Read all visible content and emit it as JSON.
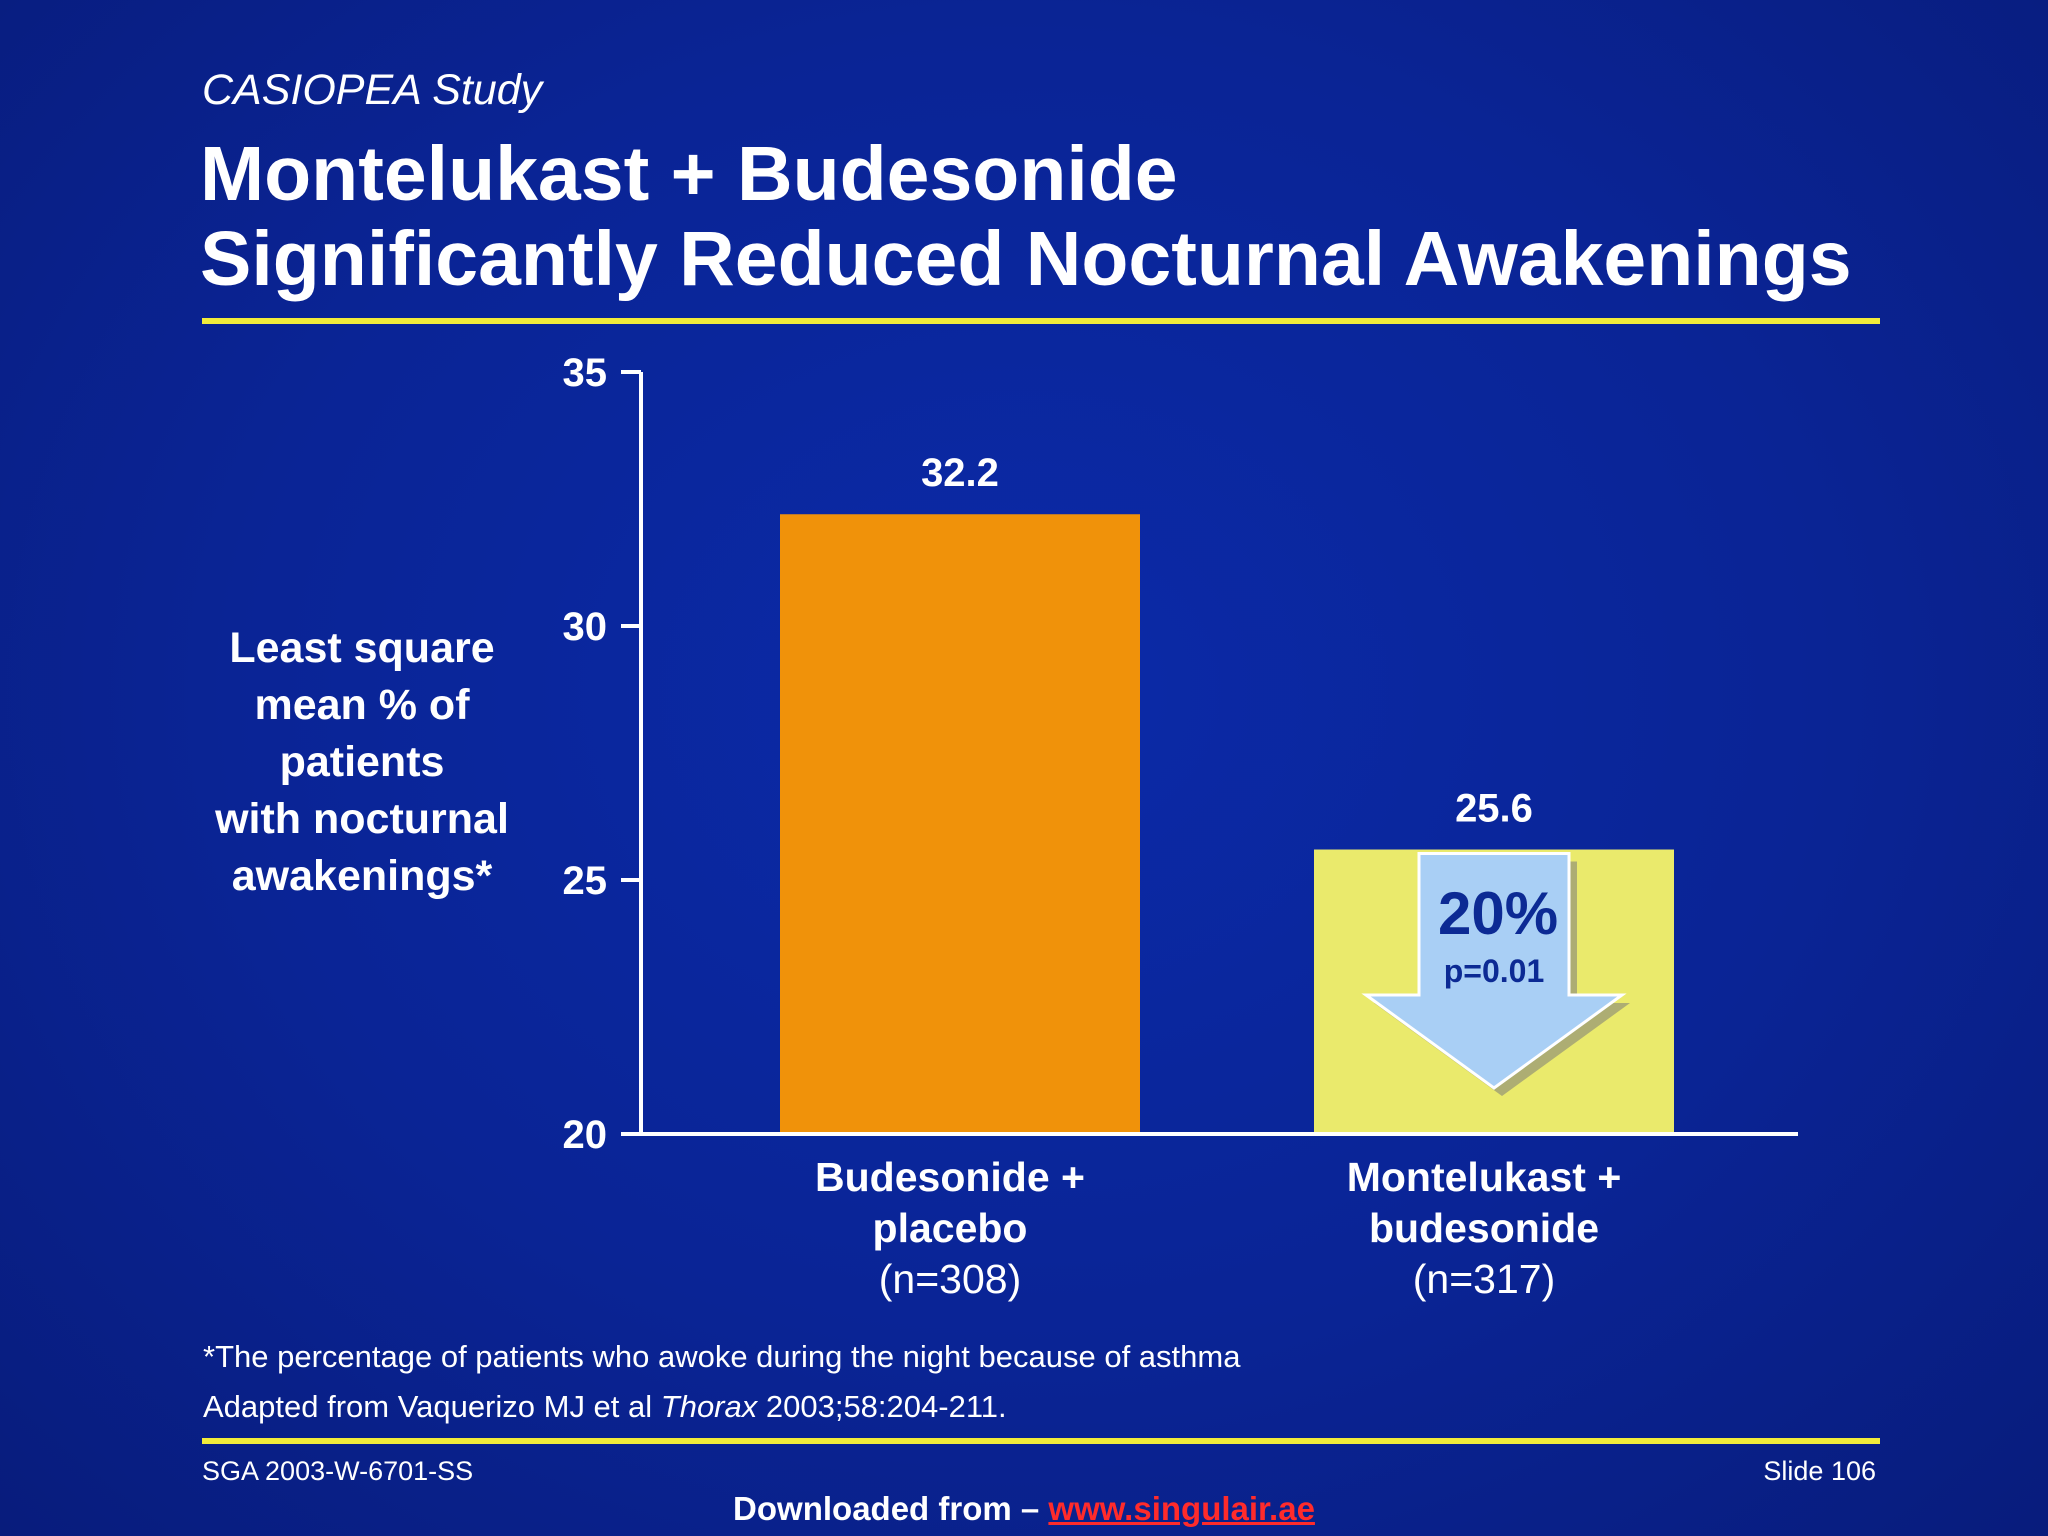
{
  "slide": {
    "study_label": "CASIOPEA Study",
    "title_line1": "Montelukast + Budesonide",
    "title_line2": "Significantly Reduced Nocturnal Awakenings",
    "footnote_line1": "*The percentage of patients who awoke during the night because of asthma",
    "footnote_line2_pre": "Adapted from Vaquerizo MJ et al ",
    "footnote_line2_journal": "Thorax",
    "footnote_line2_post": " 2003;58:204-211.",
    "footer_code": "SGA 2003-W-6701-SS",
    "slide_number": "Slide 106",
    "downloaded_prefix": "Downloaded from – ",
    "downloaded_link": "www.singulair.ae"
  },
  "chart_data": {
    "type": "bar",
    "ylabel_lines": [
      "Least square",
      "mean % of",
      "patients",
      "with nocturnal",
      "awakenings*"
    ],
    "ylim": [
      20,
      35
    ],
    "yticks": [
      "35",
      "30",
      "25",
      "20"
    ],
    "categories": [
      {
        "line1": "Budesonide +",
        "line2": "placebo",
        "line3": "(n=308)"
      },
      {
        "line1": "Montelukast +",
        "line2": "budesonide",
        "line3": "(n=317)"
      }
    ],
    "values": [
      32.2,
      25.6
    ],
    "value_labels": [
      "32.2",
      "25.6"
    ],
    "bar_colors": [
      "#f0920a",
      "#eaea6c"
    ],
    "annotation": {
      "percent": "20%",
      "p_value": "p=0.01",
      "arrow_color": "#a9cff5"
    }
  }
}
